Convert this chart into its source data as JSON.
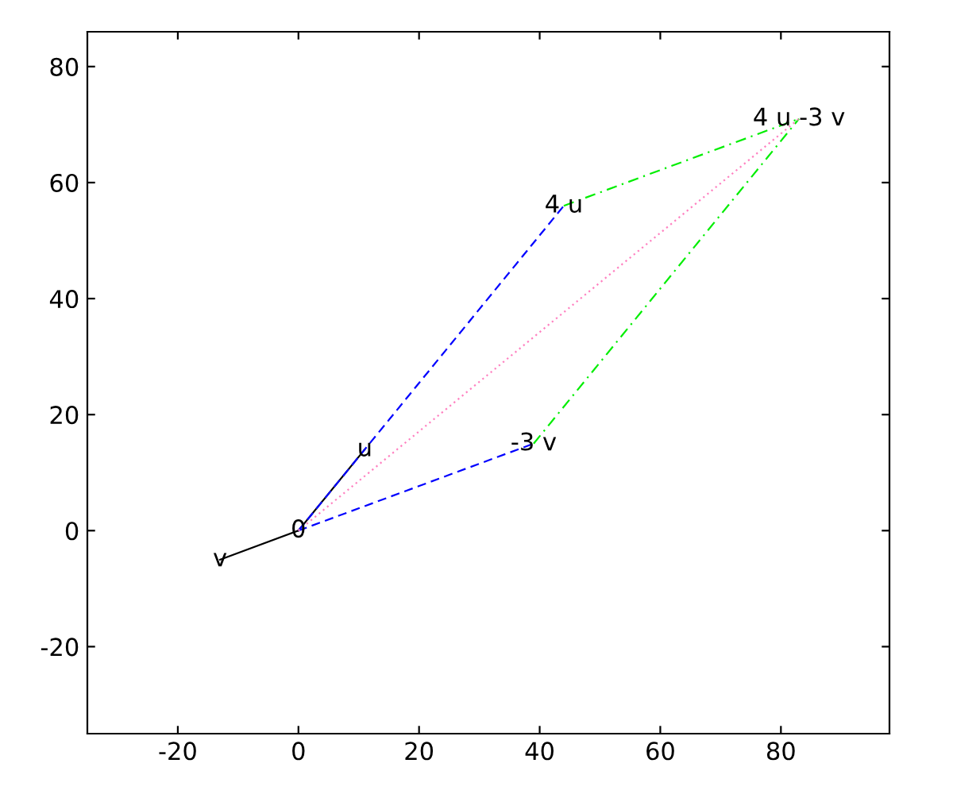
{
  "chart_data": {
    "type": "line",
    "xlim": [
      -35,
      98
    ],
    "ylim": [
      -35,
      86
    ],
    "xticks": [
      -20,
      0,
      20,
      40,
      60,
      80
    ],
    "yticks": [
      -20,
      0,
      20,
      40,
      60,
      80
    ],
    "grid": false,
    "legend": false,
    "marker": "none",
    "series": [
      {
        "color": "#000000",
        "line_style": "solid",
        "x": [
          0,
          11
        ],
        "values": [
          0,
          14
        ]
      },
      {
        "color": "#000000",
        "line_style": "solid",
        "x": [
          0,
          -13
        ],
        "values": [
          0,
          -5
        ]
      },
      {
        "color": "#0000ff",
        "line_style": "dashed",
        "x": [
          0,
          44
        ],
        "values": [
          0,
          56
        ]
      },
      {
        "color": "#0000ff",
        "line_style": "dashed",
        "x": [
          0,
          39
        ],
        "values": [
          0,
          15
        ]
      },
      {
        "color": "#00ee00",
        "line_style": "dashdot",
        "x": [
          44,
          83
        ],
        "values": [
          56,
          71
        ]
      },
      {
        "color": "#00ee00",
        "line_style": "dashdot",
        "x": [
          39,
          83
        ],
        "values": [
          15,
          71
        ]
      },
      {
        "color": "#ff80c0",
        "line_style": "dotted",
        "x": [
          0,
          83
        ],
        "values": [
          0,
          71
        ]
      }
    ],
    "annotations": [
      {
        "text": "0",
        "x": 0,
        "y": 0
      },
      {
        "text": "u",
        "x": 11,
        "y": 14
      },
      {
        "text": "v",
        "x": -13,
        "y": -5
      },
      {
        "text": "4 u",
        "x": 44,
        "y": 56
      },
      {
        "text": "-3 v",
        "x": 39,
        "y": 15
      },
      {
        "text": "4 u -3 v",
        "x": 83,
        "y": 71
      }
    ]
  }
}
